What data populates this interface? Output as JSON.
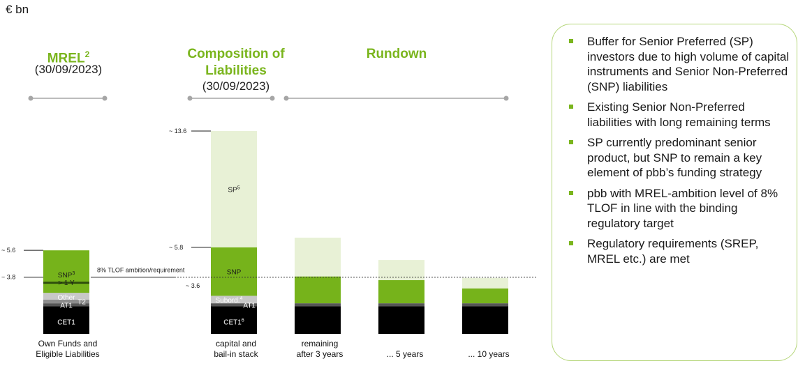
{
  "unit_label": "€ bn",
  "headings": {
    "mrel": {
      "title": "MREL",
      "sup": "2",
      "date": "(30/09/2023)"
    },
    "composition": {
      "title": "Composition of Liabilities",
      "date": "(30/09/2023)"
    },
    "rundown": {
      "title": "Rundown"
    }
  },
  "chart_data": {
    "type": "stacked-bar",
    "unit": "€ bn",
    "categories": [
      "Own Funds and Eligible Liabilities",
      "capital and bail-in stack",
      "remaining after 3 years",
      "... 5 years",
      "... 10 years"
    ],
    "category_labels": [
      [
        "Own Funds and",
        "Eligible Liabilities"
      ],
      [
        "capital and",
        "bail-in stack"
      ],
      [
        "remaining",
        "after 3 years"
      ],
      [
        "... 5 years"
      ],
      [
        "... 10 years"
      ]
    ],
    "series": [
      {
        "name": "CET1",
        "color": "#000000",
        "values": [
          1.85,
          1.85,
          1.85,
          1.85,
          1.85
        ]
      },
      {
        "name": "AT1",
        "color": "#555555",
        "values": [
          0.2,
          0.2,
          0.2,
          0.2,
          0.2
        ]
      },
      {
        "name": "T2",
        "color": "#8c8c8c",
        "values": [
          0.25,
          0.0,
          0.0,
          0.0,
          0.0
        ]
      },
      {
        "name": "Other",
        "color": "#c8c8c8",
        "values": [
          0.45,
          0.0,
          0.0,
          0.0,
          0.0
        ]
      },
      {
        "name": "Subord.",
        "color": "#c8c8c8",
        "values": [
          0.0,
          0.5,
          0.0,
          0.0,
          0.0
        ]
      },
      {
        "name": "SNP > 1 Y",
        "color": "#76b31b",
        "values": [
          2.85,
          0.0,
          0.0,
          0.0,
          0.0
        ]
      },
      {
        "name": "SNP",
        "color": "#76b31b",
        "values": [
          0.0,
          3.25,
          1.8,
          1.55,
          1.0
        ]
      },
      {
        "name": "SP",
        "color": "#e8f1d6",
        "values": [
          0.0,
          7.8,
          2.6,
          1.35,
          0.7
        ]
      }
    ],
    "segment_labels": [
      {
        "bar": 0,
        "series": "CET1",
        "text": "CET1"
      },
      {
        "bar": 0,
        "series": "AT1",
        "text": "AT1"
      },
      {
        "bar": 0,
        "series": "T2",
        "text": "T2"
      },
      {
        "bar": 0,
        "series": "Other",
        "text": "Other"
      },
      {
        "bar": 0,
        "series": "SNP > 1 Y",
        "text": "SNP",
        "sup": "3",
        "line2": "> 1 Y"
      },
      {
        "bar": 1,
        "series": "CET1",
        "text": "CET1",
        "sup": "6"
      },
      {
        "bar": 1,
        "series": "AT1",
        "text": "AT1"
      },
      {
        "bar": 1,
        "series": "Subord.",
        "text": "Subord.",
        "sup": "4"
      },
      {
        "bar": 1,
        "series": "SNP",
        "text": "SNP"
      },
      {
        "bar": 1,
        "series": "SP",
        "text": "SP",
        "sup": "5"
      }
    ],
    "value_annotations": [
      {
        "text": "~ 5.6",
        "value": 5.6,
        "bar": 0
      },
      {
        "text": "~ 3.8",
        "value": 3.8,
        "bar": 0
      },
      {
        "text": "~ 13.6",
        "value": 13.6,
        "bar": 1
      },
      {
        "text": "~ 5.8",
        "value": 5.8,
        "bar": 1
      },
      {
        "text": "~ 3.6",
        "value": 3.6,
        "bar": 1
      }
    ],
    "reference_line": {
      "value": 3.8,
      "label": "8% TLOF ambition/requirement"
    },
    "ylim": [
      0,
      13.6
    ]
  },
  "panel": {
    "bullets": [
      "Buffer for Senior Preferred (SP) investors due to high volume of capital instruments and Senior Non-Preferred (SNP) liabilities",
      "Existing Senior Non-Preferred liabilities with long remaining terms",
      "SP currently predominant senior product, but SNP to remain a key element of pbb’s funding strategy",
      "pbb with MREL-ambition level of 8% TLOF in line with the binding regulatory target",
      "Regulatory requirements (SREP, MREL etc.) are met"
    ]
  }
}
